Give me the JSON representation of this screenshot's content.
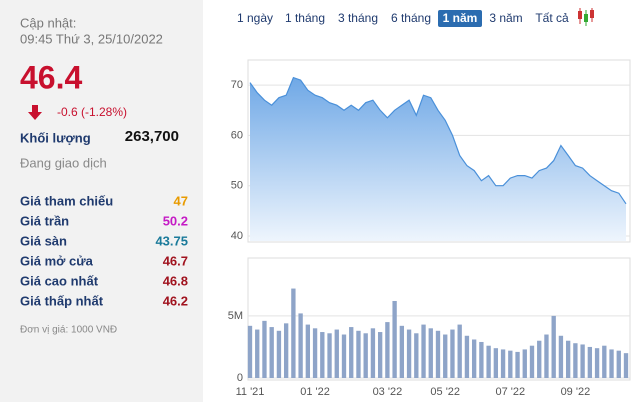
{
  "panel": {
    "updated_label": "Cập nhật:",
    "updated_time": "09:45 Thứ 3, 25/10/2022",
    "price": "46.4",
    "change": "-0.6 (-1.28%)",
    "volume_label": "Khối lượng",
    "volume": "263,700",
    "status": "Đang giao dịch",
    "rows": [
      [
        "Giá tham chiếu",
        "47"
      ],
      [
        "Giá trần",
        "50.2"
      ],
      [
        "Giá sàn",
        "43.75"
      ],
      [
        "Giá mở cửa",
        "46.7"
      ],
      [
        "Giá cao nhất",
        "46.8"
      ],
      [
        "Giá thấp nhất",
        "46.2"
      ]
    ],
    "unit_note": "Đơn vị giá: 1000 VNĐ"
  },
  "tabs": [
    "1 ngày",
    "1 tháng",
    "3 tháng",
    "6 tháng",
    "1 năm",
    "3 năm",
    "Tất cả"
  ],
  "chart_data": [
    {
      "type": "area",
      "color": "#4a90d9",
      "grid": true,
      "categories": [
        "11 '21",
        null,
        null,
        null,
        null,
        null,
        null,
        null,
        null,
        "01 '22",
        null,
        null,
        null,
        null,
        null,
        null,
        null,
        null,
        null,
        "03 '22",
        null,
        null,
        null,
        null,
        null,
        null,
        null,
        "05 '22",
        null,
        null,
        null,
        null,
        null,
        null,
        null,
        null,
        "07 '22",
        null,
        null,
        null,
        null,
        null,
        null,
        null,
        null,
        "09 '22",
        null,
        null,
        null,
        null,
        null,
        null,
        null
      ],
      "values": [
        70.5,
        68.5,
        67,
        66,
        67.5,
        68,
        71.5,
        71,
        69,
        68,
        67.5,
        66.5,
        66,
        65,
        66,
        65,
        66.5,
        67,
        65,
        63.5,
        65,
        66,
        67,
        64,
        68,
        67.5,
        65,
        63,
        60,
        56,
        54,
        53,
        51,
        52,
        50,
        50,
        51.5,
        52,
        52,
        51.5,
        53,
        53.5,
        55,
        58,
        56,
        54,
        53.5,
        52,
        51,
        50,
        49,
        48.5,
        46.4
      ],
      "ylim": [
        39,
        74.6
      ],
      "yticks": [
        40,
        50,
        60,
        70
      ]
    },
    {
      "type": "bar",
      "color": "#8ea4c8",
      "grid": true,
      "values": [
        4200000,
        3900000,
        4600000,
        4100000,
        3800000,
        4400000,
        7200000,
        5200000,
        4300000,
        4000000,
        3700000,
        3600000,
        3900000,
        3500000,
        4100000,
        3800000,
        3600000,
        4000000,
        3700000,
        4500000,
        6200000,
        4200000,
        3900000,
        3600000,
        4300000,
        4000000,
        3800000,
        3500000,
        3900000,
        4300000,
        3400000,
        3100000,
        2900000,
        2600000,
        2400000,
        2300000,
        2200000,
        2100000,
        2300000,
        2600000,
        3000000,
        3500000,
        5000000,
        3400000,
        3000000,
        2800000,
        2700000,
        2500000,
        2400000,
        2600000,
        2300000,
        2200000,
        2000000
      ],
      "ylim": [
        0,
        9660000
      ],
      "yticks": [
        0,
        {
          "value": 5000000,
          "label": "5M"
        }
      ]
    }
  ]
}
